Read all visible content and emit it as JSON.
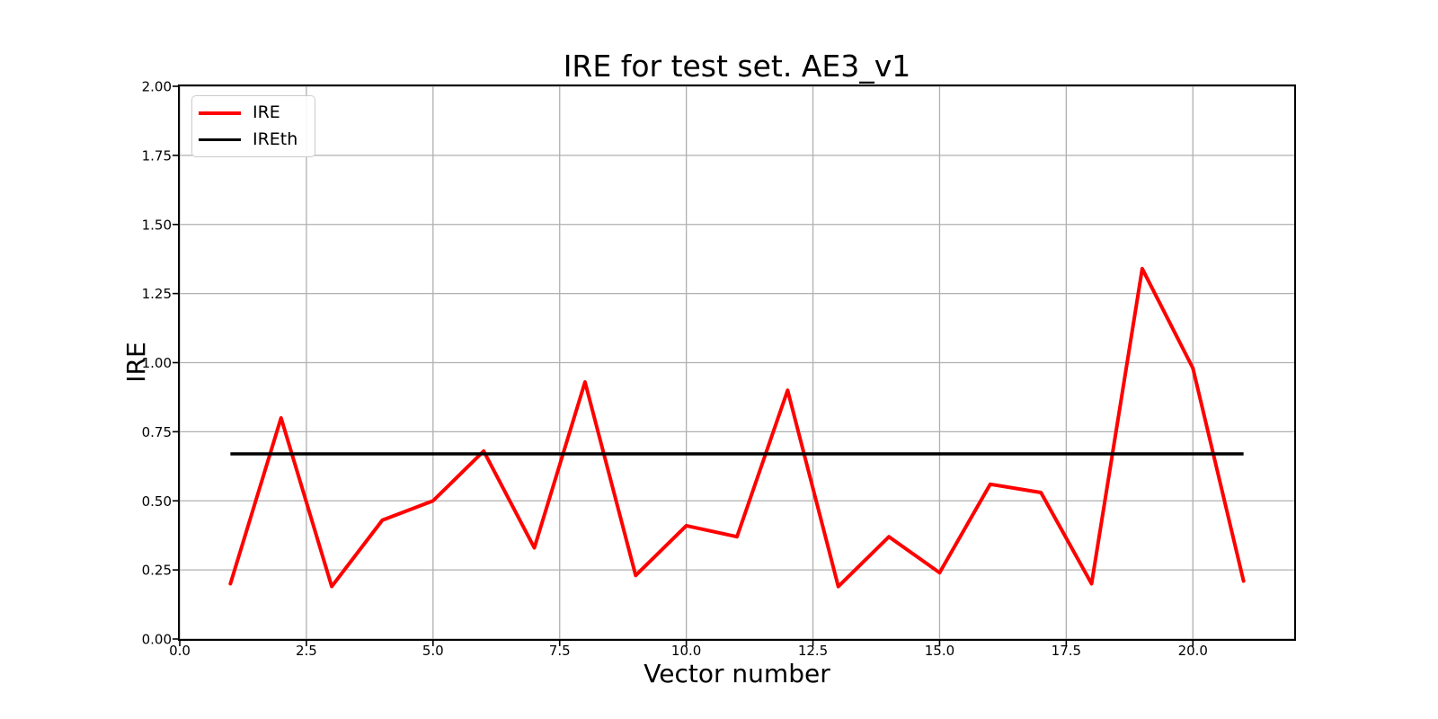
{
  "figure": {
    "background": "#ffffff",
    "axis_color": "#000000",
    "grid_color": "#b0b0b0",
    "legend_border_color": "#cccccc"
  },
  "chart_data": {
    "type": "line",
    "title": "IRE for test set. AE3_v1",
    "xlabel": "Vector number",
    "ylabel": "IRE",
    "xlim": [
      0,
      22
    ],
    "ylim": [
      0.0,
      2.0
    ],
    "grid": true,
    "legend_position": "upper left",
    "xticks": {
      "values": [
        0,
        2.5,
        5,
        7.5,
        10,
        12.5,
        15,
        17.5,
        20
      ],
      "labels": [
        "0.0",
        "2.5",
        "5.0",
        "7.5",
        "10.0",
        "12.5",
        "15.0",
        "17.5",
        "20.0"
      ]
    },
    "yticks": {
      "values": [
        0,
        0.25,
        0.5,
        0.75,
        1,
        1.25,
        1.5,
        1.75,
        2
      ],
      "labels": [
        "0.00",
        "0.25",
        "0.50",
        "0.75",
        "1.00",
        "1.25",
        "1.50",
        "1.75",
        "2.00"
      ]
    },
    "x": [
      1,
      2,
      3,
      4,
      5,
      6,
      7,
      8,
      9,
      10,
      11,
      12,
      13,
      14,
      15,
      16,
      17,
      18,
      19,
      20,
      21
    ],
    "series": [
      {
        "name": "IRE",
        "color": "#ff0000",
        "kind": "line",
        "values": [
          0.2,
          0.8,
          0.19,
          0.43,
          0.5,
          0.68,
          0.33,
          0.93,
          0.23,
          0.41,
          0.37,
          0.9,
          0.19,
          0.37,
          0.24,
          0.56,
          0.53,
          0.2,
          1.34,
          0.98,
          0.21
        ]
      },
      {
        "name": "IREth",
        "color": "#000000",
        "kind": "hline",
        "value": 0.67,
        "x_start": 1,
        "x_end": 21
      }
    ]
  }
}
